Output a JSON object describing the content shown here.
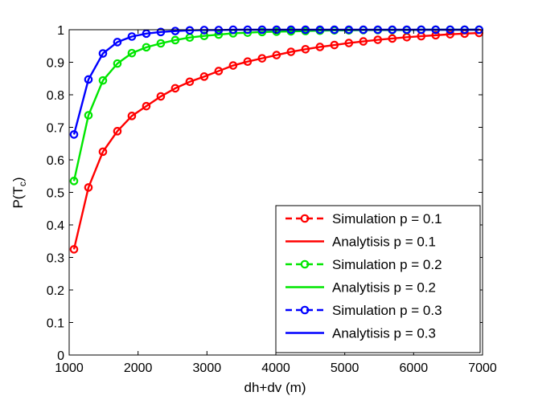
{
  "chart_data": {
    "type": "line",
    "xlabel": "dh+dv (m)",
    "ylabel_main": "P(T",
    "ylabel_sub": "c",
    "ylabel_close": ")",
    "xlim": [
      1000,
      7000
    ],
    "ylim": [
      0,
      1
    ],
    "xticks": [
      1000,
      2000,
      3000,
      4000,
      5000,
      6000,
      7000
    ],
    "xtick_labels": [
      "1000",
      "2000",
      "3000",
      "4000",
      "5000",
      "6000",
      "7000"
    ],
    "yticks": [
      0,
      0.1,
      0.2,
      0.3,
      0.4,
      0.5,
      0.6,
      0.7,
      0.8,
      0.9,
      1
    ],
    "ytick_labels": [
      "0",
      "0.1",
      "0.2",
      "0.3",
      "0.4",
      "0.5",
      "0.6",
      "0.7",
      "0.8",
      "0.9",
      "1"
    ],
    "grid": false,
    "legend_position": "bottom-right",
    "x": [
      1070,
      1280,
      1490,
      1700,
      1910,
      2120,
      2330,
      2540,
      2750,
      2960,
      3170,
      3380,
      3590,
      3800,
      4010,
      4220,
      4430,
      4640,
      4850,
      5060,
      5270,
      5480,
      5690,
      5900,
      6110,
      6320,
      6530,
      6740,
      6950
    ],
    "series": [
      {
        "name": "p = 0.1",
        "color": "#ff0000",
        "simulation_label": "Simulation p = 0.1",
        "analysis_label": "Analytisis p = 0.1",
        "values": [
          0.325,
          0.515,
          0.625,
          0.688,
          0.735,
          0.765,
          0.795,
          0.82,
          0.84,
          0.856,
          0.873,
          0.89,
          0.902,
          0.912,
          0.922,
          0.932,
          0.94,
          0.947,
          0.953,
          0.959,
          0.964,
          0.969,
          0.973,
          0.977,
          0.98,
          0.983,
          0.986,
          0.988,
          0.99
        ]
      },
      {
        "name": "p = 0.2",
        "color": "#00e600",
        "simulation_label": "Simulation p = 0.2",
        "analysis_label": "Analytisis p = 0.2",
        "values": [
          0.535,
          0.737,
          0.844,
          0.896,
          0.928,
          0.946,
          0.958,
          0.968,
          0.976,
          0.981,
          0.985,
          0.989,
          0.991,
          0.993,
          0.994,
          0.995,
          0.996,
          0.997,
          0.998,
          0.998,
          0.999,
          0.999,
          0.999,
          0.999,
          1,
          1,
          1,
          1,
          1
        ]
      },
      {
        "name": "p = 0.3",
        "color": "#0000ff",
        "simulation_label": "Simulation p = 0.3",
        "analysis_label": "Analytisis p = 0.3",
        "values": [
          0.678,
          0.847,
          0.927,
          0.962,
          0.979,
          0.988,
          0.993,
          0.996,
          0.998,
          0.999,
          0.999,
          1,
          1,
          1,
          1,
          1,
          1,
          1,
          1,
          1,
          1,
          1,
          1,
          1,
          1,
          1,
          1,
          1,
          1
        ]
      }
    ]
  }
}
